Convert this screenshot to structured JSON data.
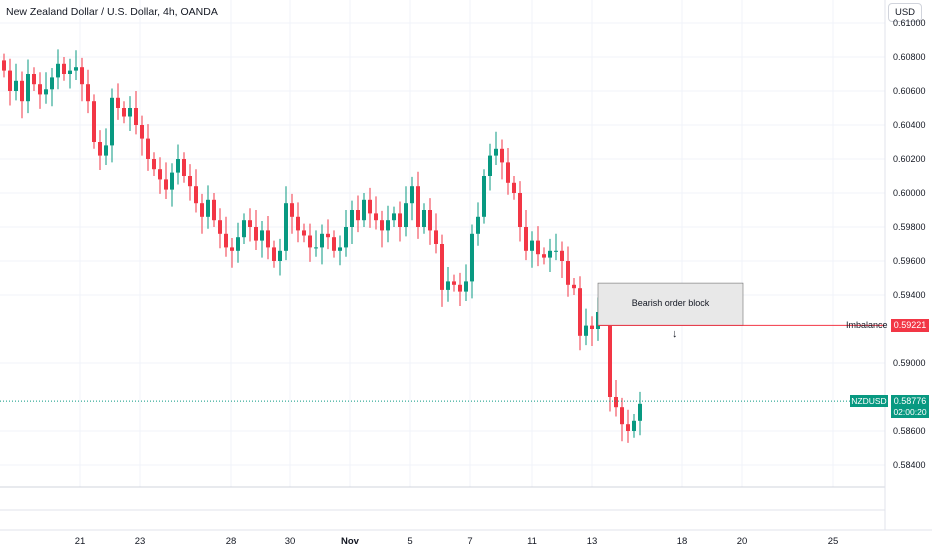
{
  "header": {
    "title": "New Zealand Dollar / U.S. Dollar, 4h, OANDA",
    "currency_button": "USD"
  },
  "price_axis": {
    "labels": [
      "0.61000",
      "0.60800",
      "0.60600",
      "0.60400",
      "0.60200",
      "0.60000",
      "0.59800",
      "0.59600",
      "0.59400",
      "0.59000",
      "0.58600",
      "0.58400"
    ]
  },
  "time_axis": {
    "labels": [
      "21",
      "23",
      "28",
      "30",
      "Nov",
      "5",
      "7",
      "11",
      "13",
      "18",
      "20",
      "25"
    ]
  },
  "annotations": {
    "order_block_label": "Bearish order block",
    "imbalance_label": "Imbalance",
    "imbalance_price": "0.59221",
    "symbol_tag": "NZDUSD",
    "current_price": "0.58776",
    "countdown": "02:00:20"
  },
  "colors": {
    "up": "#089981",
    "down": "#f23645",
    "grid": "#f0f3fa",
    "box_fill": "#e8e8e8",
    "box_border": "#707070"
  },
  "chart_data": {
    "type": "candlestick",
    "title": "New Zealand Dollar / U.S. Dollar, 4h, OANDA",
    "y_range": [
      0.583,
      0.6105
    ],
    "candles_close": [
      0.6072,
      0.606,
      0.6066,
      0.6054,
      0.607,
      0.6064,
      0.6058,
      0.6061,
      0.6068,
      0.6076,
      0.607,
      0.6072,
      0.6074,
      0.6064,
      0.6054,
      0.603,
      0.6022,
      0.6028,
      0.6056,
      0.605,
      0.6045,
      0.605,
      0.604,
      0.6032,
      0.602,
      0.6014,
      0.6008,
      0.6002,
      0.6012,
      0.602,
      0.601,
      0.6004,
      0.5994,
      0.5986,
      0.5996,
      0.5984,
      0.5976,
      0.5968,
      0.5966,
      0.5974,
      0.5984,
      0.598,
      0.5972,
      0.5978,
      0.5968,
      0.596,
      0.5966,
      0.5994,
      0.5986,
      0.5978,
      0.5975,
      0.5968,
      0.5968,
      0.5976,
      0.5974,
      0.5966,
      0.5968,
      0.598,
      0.599,
      0.5984,
      0.5996,
      0.5988,
      0.5984,
      0.5978,
      0.5984,
      0.5988,
      0.598,
      0.5994,
      0.6004,
      0.598,
      0.599,
      0.5978,
      0.597,
      0.5943,
      0.5948,
      0.5946,
      0.5942,
      0.5948,
      0.5976,
      0.5986,
      0.601,
      0.6022,
      0.6026,
      0.6018,
      0.6006,
      0.6,
      0.598,
      0.5966,
      0.5972,
      0.5964,
      0.5962,
      0.5966,
      0.5966,
      0.596,
      0.5946,
      0.5944,
      0.5916,
      0.5922,
      0.592,
      0.593,
      0.5938,
      0.588,
      0.5874,
      0.5864,
      0.586,
      0.5866,
      0.5876
    ],
    "order_block": {
      "top": 0.5947,
      "bottom": 0.5922,
      "label": "Bearish order block"
    },
    "imbalance_level": 0.59221,
    "current_price": 0.58776
  }
}
